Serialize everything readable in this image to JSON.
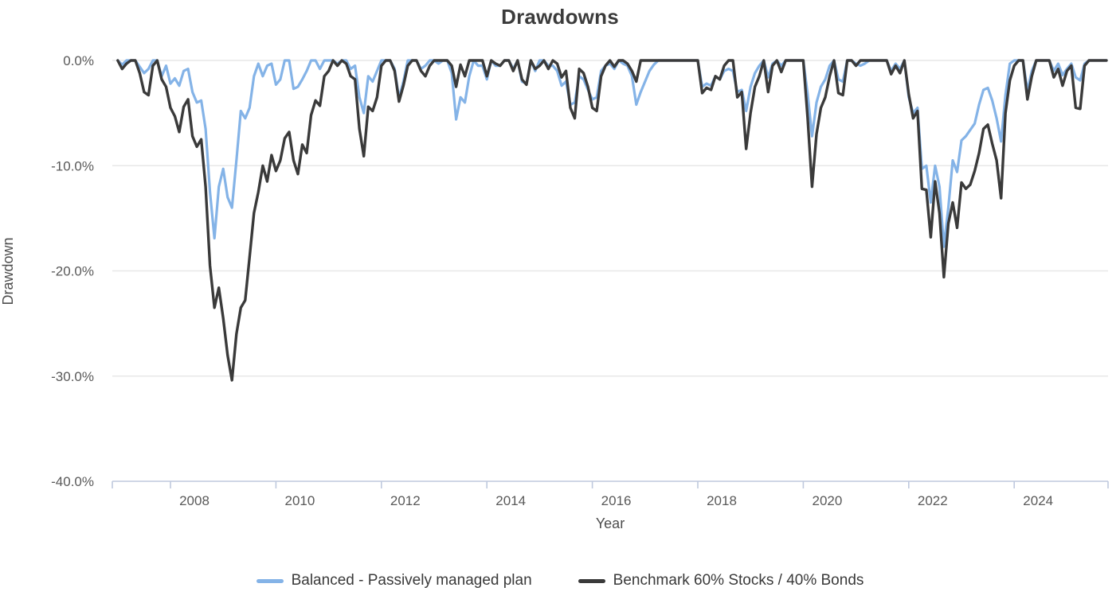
{
  "chart": {
    "title": "Drawdowns",
    "x_axis_label": "Year",
    "y_axis_label": "Drawdown"
  },
  "legend": [
    {
      "label": "Balanced - Passively managed plan",
      "color": "#84b3e7"
    },
    {
      "label": "Benchmark 60% Stocks / 40% Bonds",
      "color": "#3a3a3a"
    }
  ],
  "colors": {
    "grid": "#e7e7e7",
    "axis": "#bfc9de",
    "tick_text": "#595959",
    "title_text": "#3b3b3b",
    "series_balanced": "#84b3e7",
    "series_benchmark": "#3a3a3a"
  },
  "chart_data": {
    "type": "line",
    "title": "Drawdowns",
    "xlabel": "Year",
    "ylabel": "Drawdown",
    "ylim": [
      -40,
      0
    ],
    "grid": true,
    "legend_position": "bottom",
    "x_start_year": 2007,
    "x_step_months": 1,
    "x_tick_years": [
      2008,
      2010,
      2012,
      2014,
      2016,
      2018,
      2020,
      2022,
      2024
    ],
    "y_ticks": [
      {
        "value": 0,
        "label": "0.0%"
      },
      {
        "value": -10,
        "label": "-10.0%"
      },
      {
        "value": -20,
        "label": "-20.0%"
      },
      {
        "value": -30,
        "label": "-30.0%"
      },
      {
        "value": -40,
        "label": "-40.0%"
      }
    ],
    "series": [
      {
        "id": "balanced",
        "name": "Balanced - Passively managed plan",
        "color": "#84b3e7",
        "width": 3.2,
        "values": [
          0,
          -0.4,
          0,
          0,
          0,
          -0.6,
          -1.2,
          -0.8,
          0,
          0,
          -1.5,
          -0.5,
          -2.2,
          -1.7,
          -2.4,
          -1.0,
          -0.8,
          -3.0,
          -4.0,
          -3.8,
          -6.5,
          -12.5,
          -16.9,
          -12.0,
          -10.3,
          -13.0,
          -14.0,
          -9.5,
          -4.8,
          -5.5,
          -4.5,
          -1.5,
          -0.3,
          -1.5,
          -0.5,
          -0.3,
          -2.3,
          -1.8,
          0,
          0,
          -2.7,
          -2.5,
          -1.8,
          -1.0,
          0,
          0,
          -0.8,
          0,
          0,
          0,
          -0.3,
          0,
          0,
          -0.8,
          -0.5,
          -3.5,
          -5.0,
          -1.5,
          -2.0,
          -1.0,
          0,
          0,
          0,
          -0.8,
          -3.6,
          -2.0,
          0,
          0,
          0,
          -0.8,
          -0.5,
          0,
          0,
          -0.3,
          0,
          0,
          -1.2,
          -5.6,
          -3.5,
          -4.0,
          -1.5,
          0,
          -0.5,
          -0.5,
          -1.8,
          0,
          -0.5,
          -0.5,
          0,
          0,
          -0.8,
          0,
          -2.0,
          -2.2,
          0,
          -1.0,
          0,
          0,
          -0.5,
          -0.5,
          -1.0,
          -2.4,
          -2.0,
          -4.2,
          -4.0,
          -1.5,
          -1.8,
          -2.8,
          -3.7,
          -3.5,
          -1.0,
          -0.5,
          -0.3,
          -0.8,
          0,
          -0.3,
          -0.5,
          -1.5,
          -4.2,
          -3.0,
          -2.0,
          -1.0,
          -0.4,
          0,
          0,
          0,
          0,
          0,
          0,
          0,
          0,
          0,
          0,
          -2.5,
          -2.2,
          -2.4,
          -1.5,
          -1.8,
          -1.0,
          -0.8,
          -1.0,
          -3.0,
          -2.8,
          -4.8,
          -2.5,
          -1.2,
          -0.5,
          0,
          -1.6,
          -0.3,
          0,
          -0.5,
          0,
          0,
          0,
          0,
          0,
          -3.2,
          -7.2,
          -4.0,
          -2.5,
          -1.8,
          -0.5,
          0,
          -1.8,
          -2.0,
          0,
          0,
          -0.3,
          -0.5,
          -0.3,
          0,
          0,
          0,
          0,
          0,
          -1.0,
          -0.3,
          -0.8,
          0,
          -3.5,
          -5.0,
          -4.5,
          -10.3,
          -10.0,
          -13.5,
          -10.0,
          -12.0,
          -17.7,
          -14.0,
          -9.5,
          -10.6,
          -7.6,
          -7.2,
          -6.6,
          -6.0,
          -4.2,
          -2.8,
          -2.6,
          -3.8,
          -5.5,
          -7.7,
          -3.3,
          -0.3,
          0,
          0,
          0,
          -2.9,
          -1.0,
          0,
          0,
          0,
          0,
          -1.0,
          -0.3,
          -1.4,
          -0.8,
          -0.3,
          -1.6,
          -1.9,
          -0.3,
          0,
          0,
          0,
          0,
          0
        ]
      },
      {
        "id": "benchmark",
        "name": "Benchmark 60% Stocks / 40% Bonds",
        "color": "#3a3a3a",
        "width": 3.4,
        "values": [
          0,
          -0.8,
          -0.3,
          0,
          0,
          -1.2,
          -3.0,
          -3.3,
          -0.5,
          0,
          -1.8,
          -2.5,
          -4.5,
          -5.3,
          -6.8,
          -4.4,
          -3.7,
          -7.2,
          -8.2,
          -7.5,
          -12.0,
          -19.5,
          -23.5,
          -21.6,
          -24.5,
          -28.0,
          -30.4,
          -26.0,
          -23.5,
          -22.8,
          -18.7,
          -14.5,
          -12.5,
          -10.0,
          -11.5,
          -9.0,
          -10.5,
          -9.5,
          -7.4,
          -6.8,
          -9.5,
          -10.8,
          -8.0,
          -8.8,
          -5.2,
          -3.8,
          -4.3,
          -1.5,
          -1.0,
          0,
          -0.5,
          0,
          -0.3,
          -1.5,
          -1.8,
          -6.5,
          -9.1,
          -4.4,
          -4.8,
          -3.5,
          -0.5,
          0,
          0,
          -1.0,
          -3.9,
          -2.4,
          -0.5,
          0,
          0,
          -1.0,
          -1.5,
          -0.5,
          0,
          0,
          0,
          0,
          -0.5,
          -2.5,
          -0.4,
          -1.5,
          0,
          0,
          0,
          0,
          -1.5,
          0,
          -0.3,
          -0.5,
          0,
          0,
          -1.0,
          0,
          -1.8,
          -2.3,
          0,
          -0.8,
          -0.5,
          0,
          -0.8,
          0,
          -0.3,
          -1.6,
          -1.0,
          -4.5,
          -5.5,
          -0.8,
          -1.2,
          -2.5,
          -4.5,
          -4.8,
          -1.5,
          -0.5,
          0,
          -0.6,
          0,
          0,
          -0.3,
          -1.0,
          -2.0,
          0,
          0,
          0,
          0,
          0,
          0,
          0,
          0,
          0,
          0,
          0,
          0,
          0,
          0,
          -3.1,
          -2.6,
          -2.8,
          -1.5,
          -1.8,
          -0.5,
          0,
          0,
          -3.5,
          -3.0,
          -8.4,
          -5.0,
          -2.5,
          -1.5,
          0,
          -3.0,
          -0.5,
          0,
          -1.1,
          0,
          0,
          0,
          0,
          0,
          -5.5,
          -12.0,
          -7.0,
          -4.5,
          -3.5,
          -1.5,
          0,
          -3.1,
          -3.3,
          0,
          0,
          -0.5,
          0,
          0,
          0,
          0,
          0,
          0,
          0,
          -1.3,
          -0.5,
          -1.2,
          0,
          -3.2,
          -5.5,
          -4.8,
          -12.2,
          -12.3,
          -16.8,
          -11.5,
          -14.5,
          -20.6,
          -15.5,
          -13.5,
          -15.9,
          -11.6,
          -12.2,
          -11.8,
          -10.5,
          -8.8,
          -6.5,
          -6.1,
          -7.9,
          -9.5,
          -13.1,
          -5.0,
          -1.9,
          -0.5,
          0,
          0,
          -3.7,
          -1.5,
          0,
          0,
          0,
          0,
          -1.6,
          -0.8,
          -2.4,
          -1.0,
          -0.5,
          -4.5,
          -4.6,
          -0.5,
          0,
          0,
          0,
          0,
          0
        ]
      }
    ]
  }
}
